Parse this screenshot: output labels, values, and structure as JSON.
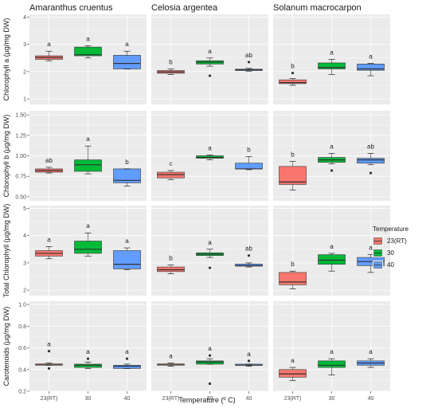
{
  "chart_data": {
    "type": "boxplot",
    "facet_columns": [
      "Amaranthus cruentus",
      "Celosia argentea",
      "Solanum macrocarpon"
    ],
    "categories": [
      "23(RT)",
      "30",
      "40"
    ],
    "xlabel": "Temperature (º C)",
    "legend": {
      "title": "Temperature",
      "position": "right",
      "entries": [
        {
          "label": "23(RT)",
          "color": "#F8766D"
        },
        {
          "label": "30",
          "color": "#00BA38"
        },
        {
          "label": "40",
          "color": "#619CFF"
        }
      ]
    },
    "grid": true,
    "rows": [
      {
        "ylabel": "Chlorophyll a (µg/mg DW)",
        "ylim": [
          0.8,
          4.1
        ],
        "yticks": [
          1,
          2,
          3,
          4
        ],
        "ytick_labels": [
          "1",
          "2",
          "3",
          "4"
        ],
        "panels": [
          {
            "boxes": [
              {
                "q1": 2.45,
                "median": 2.52,
                "q3": 2.58,
                "low": 2.4,
                "high": 2.75,
                "outliers": [],
                "sig": "a"
              },
              {
                "q1": 2.58,
                "median": 2.62,
                "q3": 2.9,
                "low": 2.5,
                "high": 2.95,
                "outliers": [],
                "sig": "a"
              },
              {
                "q1": 2.1,
                "median": 2.3,
                "q3": 2.6,
                "low": 2.1,
                "high": 2.75,
                "outliers": [],
                "sig": "a"
              }
            ]
          },
          {
            "boxes": [
              {
                "q1": 1.94,
                "median": 1.99,
                "q3": 2.04,
                "low": 1.9,
                "high": 2.1,
                "outliers": [],
                "sig": "b"
              },
              {
                "q1": 2.28,
                "median": 2.35,
                "q3": 2.4,
                "low": 2.2,
                "high": 2.5,
                "outliers": [
                  1.85
                ],
                "sig": "a"
              },
              {
                "q1": 2.04,
                "median": 2.07,
                "q3": 2.09,
                "low": 2.02,
                "high": 2.12,
                "outliers": [
                  2.35
                ],
                "sig": "ab"
              }
            ]
          },
          {
            "boxes": [
              {
                "q1": 1.56,
                "median": 1.6,
                "q3": 1.7,
                "low": 1.5,
                "high": 1.75,
                "outliers": [
                  1.95
                ],
                "sig": "b"
              },
              {
                "q1": 2.1,
                "median": 2.15,
                "q3": 2.32,
                "low": 1.9,
                "high": 2.45,
                "outliers": [],
                "sig": "a"
              },
              {
                "q1": 2.05,
                "median": 2.1,
                "q3": 2.28,
                "low": 1.85,
                "high": 2.3,
                "outliers": [],
                "sig": "a"
              }
            ]
          }
        ]
      },
      {
        "ylabel": "Chlorophyll b (µg/mg DW)",
        "ylim": [
          0.45,
          1.55
        ],
        "yticks": [
          0.5,
          0.75,
          1.0,
          1.25,
          1.5
        ],
        "ytick_labels": [
          "0.50",
          "0.75",
          "1.00",
          "1.25",
          "1.50"
        ],
        "panels": [
          {
            "boxes": [
              {
                "q1": 0.8,
                "median": 0.82,
                "q3": 0.84,
                "low": 0.79,
                "high": 0.86,
                "outliers": [],
                "sig": "ab"
              },
              {
                "q1": 0.81,
                "median": 0.89,
                "q3": 0.95,
                "low": 0.78,
                "high": 1.12,
                "outliers": [],
                "sig": "a"
              },
              {
                "q1": 0.67,
                "median": 0.7,
                "q3": 0.84,
                "low": 0.63,
                "high": 0.84,
                "outliers": [],
                "sig": "b"
              }
            ]
          },
          {
            "boxes": [
              {
                "q1": 0.73,
                "median": 0.77,
                "q3": 0.8,
                "low": 0.71,
                "high": 0.82,
                "outliers": [],
                "sig": "c"
              },
              {
                "q1": 0.97,
                "median": 0.98,
                "q3": 1.0,
                "low": 0.95,
                "high": 1.01,
                "outliers": [],
                "sig": "a"
              },
              {
                "q1": 0.84,
                "median": 0.84,
                "q3": 0.91,
                "low": 0.83,
                "high": 0.99,
                "outliers": [],
                "sig": "b"
              }
            ]
          },
          {
            "boxes": [
              {
                "q1": 0.65,
                "median": 0.68,
                "q3": 0.87,
                "low": 0.58,
                "high": 0.93,
                "outliers": [],
                "sig": "b"
              },
              {
                "q1": 0.92,
                "median": 0.95,
                "q3": 0.98,
                "low": 0.9,
                "high": 1.03,
                "outliers": [
                  0.82
                ],
                "sig": "a"
              },
              {
                "q1": 0.91,
                "median": 0.95,
                "q3": 0.97,
                "low": 0.89,
                "high": 1.03,
                "outliers": [
                  0.79
                ],
                "sig": "ab"
              }
            ]
          }
        ]
      },
      {
        "ylabel": "Total Chlorophyll (µg/mg DW)",
        "ylim": [
          1.8,
          5.1
        ],
        "yticks": [
          2,
          3,
          4,
          5
        ],
        "ytick_labels": [
          "2",
          "3",
          "4",
          "5"
        ],
        "panels": [
          {
            "boxes": [
              {
                "q1": 3.25,
                "median": 3.35,
                "q3": 3.45,
                "low": 3.15,
                "high": 3.6,
                "outliers": [],
                "sig": "a"
              },
              {
                "q1": 3.35,
                "median": 3.5,
                "q3": 3.8,
                "low": 3.25,
                "high": 4.1,
                "outliers": [],
                "sig": "a"
              },
              {
                "q1": 2.78,
                "median": 2.95,
                "q3": 3.45,
                "low": 2.75,
                "high": 3.55,
                "outliers": [],
                "sig": "a"
              }
            ]
          },
          {
            "boxes": [
              {
                "q1": 2.68,
                "median": 2.75,
                "q3": 2.85,
                "low": 2.6,
                "high": 2.92,
                "outliers": [],
                "sig": "b"
              },
              {
                "q1": 3.27,
                "median": 3.32,
                "q3": 3.37,
                "low": 3.2,
                "high": 3.5,
                "outliers": [
                  2.82
                ],
                "sig": "a"
              },
              {
                "q1": 2.88,
                "median": 2.9,
                "q3": 2.96,
                "low": 2.85,
                "high": 3.0,
                "outliers": [
                  3.27
                ],
                "sig": "ab"
              }
            ]
          },
          {
            "boxes": [
              {
                "q1": 2.2,
                "median": 2.3,
                "q3": 2.65,
                "low": 2.05,
                "high": 2.7,
                "outliers": [],
                "sig": "b"
              },
              {
                "q1": 2.95,
                "median": 3.1,
                "q3": 3.3,
                "low": 2.7,
                "high": 3.35,
                "outliers": [],
                "sig": "a"
              },
              {
                "q1": 2.9,
                "median": 3.05,
                "q3": 3.2,
                "low": 2.65,
                "high": 3.3,
                "outliers": [],
                "sig": "a"
              }
            ]
          }
        ]
      },
      {
        "ylabel": "Carotenoids (µg/mg DW)",
        "ylim": [
          0.2,
          1.03
        ],
        "yticks": [
          0.2,
          0.4,
          0.6,
          0.8,
          1.0
        ],
        "ytick_labels": [
          "0.2",
          "0.4",
          "0.6",
          "0.8",
          "1.0"
        ],
        "panels": [
          {
            "boxes": [
              {
                "q1": 0.44,
                "median": 0.45,
                "q3": 0.45,
                "low": 0.44,
                "high": 0.46,
                "outliers": [
                  0.57,
                  0.41
                ],
                "sig": "a"
              },
              {
                "q1": 0.42,
                "median": 0.44,
                "q3": 0.45,
                "low": 0.41,
                "high": 0.47,
                "outliers": [
                  0.5
                ],
                "sig": "a"
              },
              {
                "q1": 0.41,
                "median": 0.43,
                "q3": 0.44,
                "low": 0.41,
                "high": 0.45,
                "outliers": [
                  0.5
                ],
                "sig": "a"
              }
            ]
          },
          {
            "boxes": [
              {
                "q1": 0.44,
                "median": 0.45,
                "q3": 0.45,
                "low": 0.43,
                "high": 0.46,
                "outliers": [],
                "sig": "a"
              },
              {
                "q1": 0.45,
                "median": 0.47,
                "q3": 0.48,
                "low": 0.45,
                "high": 0.5,
                "outliers": [
                  0.53,
                  0.27
                ],
                "sig": "a"
              },
              {
                "q1": 0.44,
                "median": 0.44,
                "q3": 0.45,
                "low": 0.43,
                "high": 0.45,
                "outliers": [
                  0.48
                ],
                "sig": "a"
              }
            ]
          },
          {
            "boxes": [
              {
                "q1": 0.33,
                "median": 0.36,
                "q3": 0.4,
                "low": 0.3,
                "high": 0.42,
                "outliers": [],
                "sig": "a"
              },
              {
                "q1": 0.42,
                "median": 0.44,
                "q3": 0.48,
                "low": 0.35,
                "high": 0.5,
                "outliers": [],
                "sig": "a"
              },
              {
                "q1": 0.44,
                "median": 0.46,
                "q3": 0.48,
                "low": 0.42,
                "high": 0.5,
                "outliers": [],
                "sig": "a"
              }
            ]
          }
        ]
      }
    ]
  }
}
